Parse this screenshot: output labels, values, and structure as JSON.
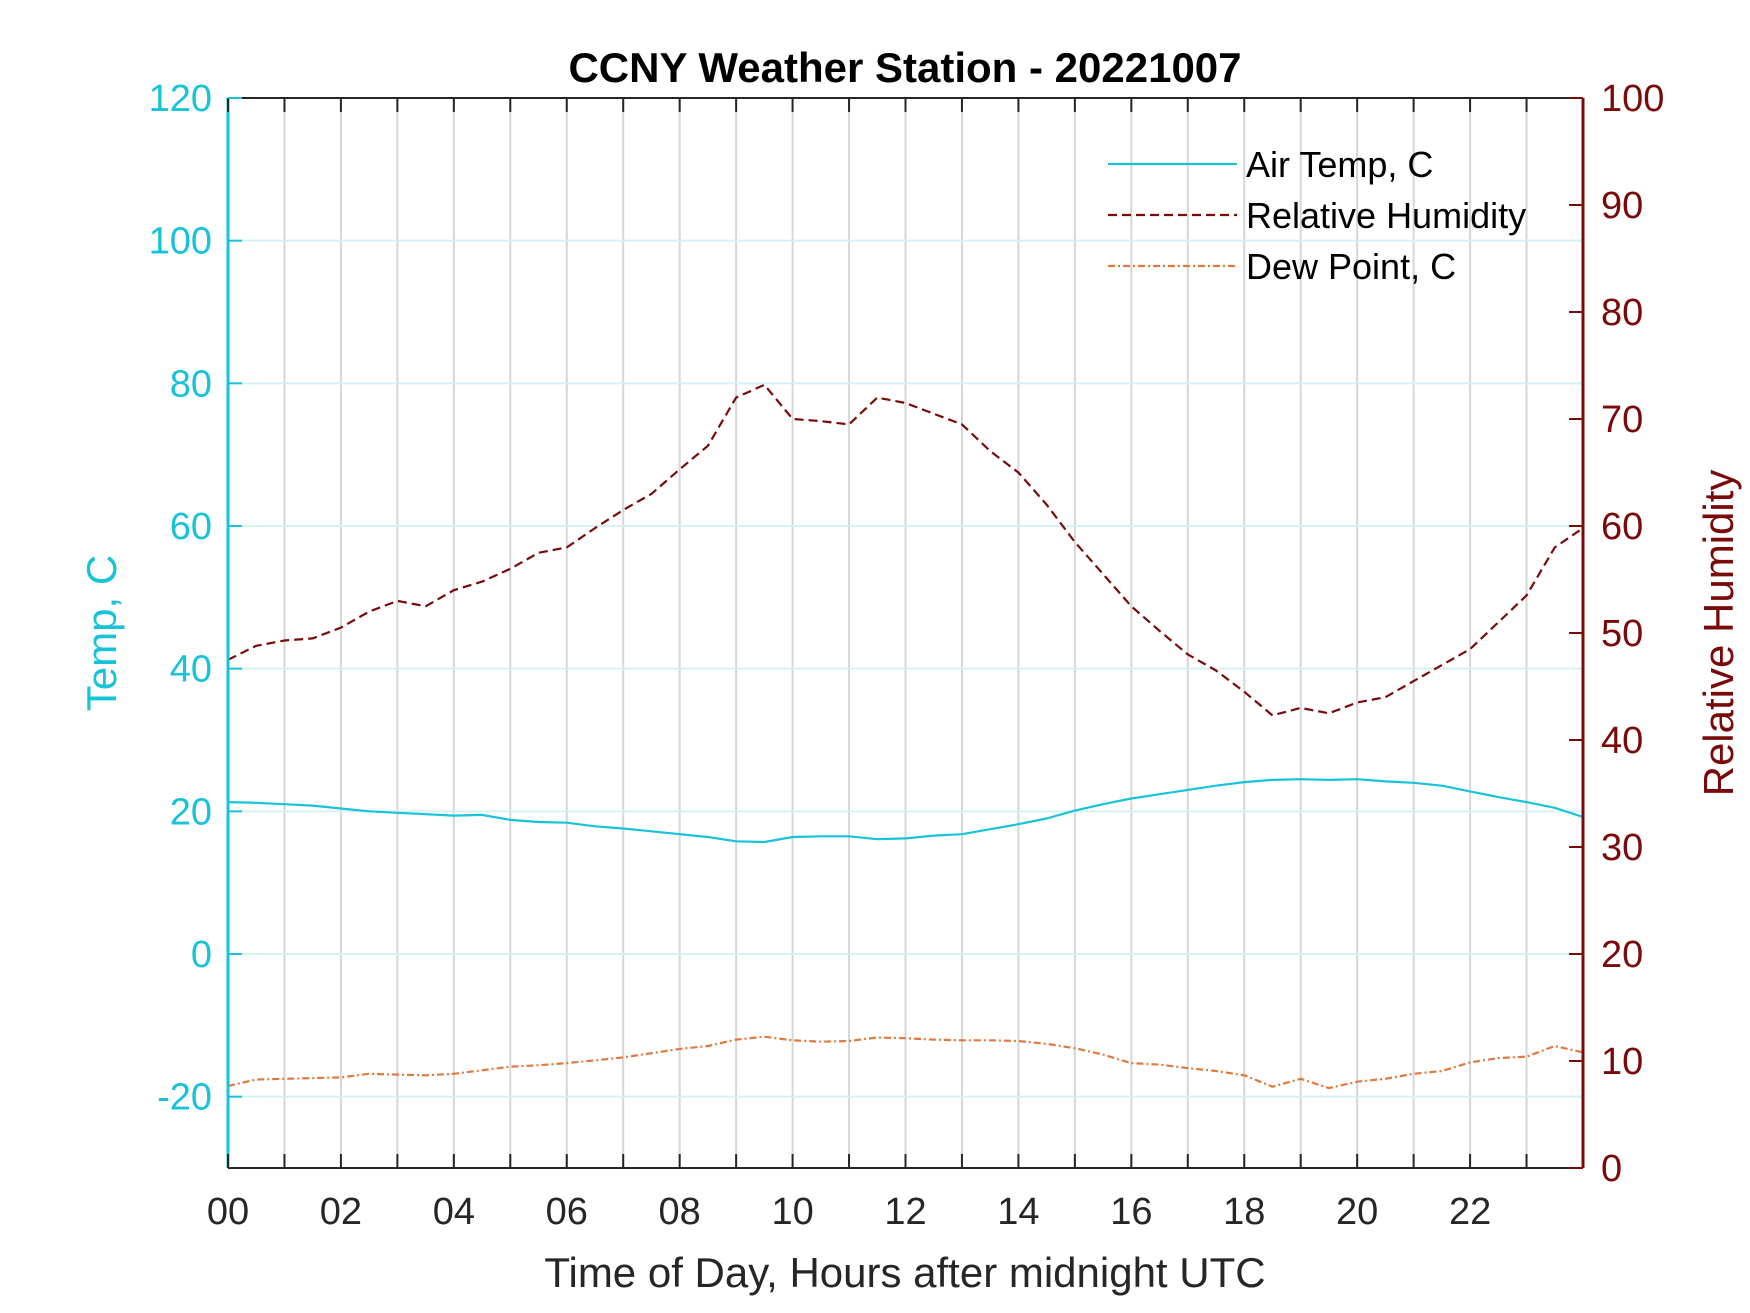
{
  "chart_data": {
    "type": "line",
    "title": "CCNY Weather Station - 20221007",
    "xlabel": "Time of Day, Hours after midnight UTC",
    "ylabel_left": "Temp, C",
    "ylabel_right": "Relative Humidity",
    "xlim": [
      0,
      24
    ],
    "ylim_left": [
      -30,
      120
    ],
    "ylim_right": [
      0,
      100
    ],
    "xticks": [
      0,
      2,
      4,
      6,
      8,
      10,
      12,
      14,
      16,
      18,
      20,
      22
    ],
    "xtick_labels": [
      "00",
      "02",
      "04",
      "06",
      "08",
      "10",
      "12",
      "14",
      "16",
      "18",
      "20",
      "22"
    ],
    "yticks_left": [
      -20,
      0,
      20,
      40,
      60,
      80,
      100,
      120
    ],
    "yticks_right": [
      0,
      10,
      20,
      30,
      40,
      50,
      60,
      70,
      80,
      90,
      100
    ],
    "grid": true,
    "legend_position": "top-right",
    "colors": {
      "left_axis": "#17c3d8",
      "right_axis": "#7a0a0a",
      "grid_vertical": "#d6d6d6",
      "grid_horizontal": "#d6f0f5"
    },
    "series": [
      {
        "name": "Air Temp, C",
        "axis": "left",
        "color": "#17c3d8",
        "style": "solid",
        "x": [
          0,
          0.5,
          1,
          1.5,
          2,
          2.5,
          3,
          3.5,
          4,
          4.5,
          5,
          5.5,
          6,
          6.5,
          7,
          7.5,
          8,
          8.5,
          9,
          9.5,
          10,
          10.5,
          11,
          11.5,
          12,
          12.5,
          13,
          13.5,
          14,
          14.5,
          15,
          15.5,
          16,
          16.5,
          17,
          17.5,
          18,
          18.5,
          19,
          19.5,
          20,
          20.5,
          21,
          21.5,
          22,
          22.5,
          23,
          23.5,
          24
        ],
        "y": [
          21.3,
          21.2,
          21.0,
          20.8,
          20.4,
          20.0,
          19.8,
          19.6,
          19.4,
          19.5,
          18.8,
          18.5,
          18.4,
          17.9,
          17.6,
          17.2,
          16.8,
          16.4,
          15.8,
          15.7,
          16.4,
          16.5,
          16.5,
          16.1,
          16.2,
          16.6,
          16.8,
          17.5,
          18.2,
          19.0,
          20.1,
          21.0,
          21.8,
          22.4,
          23.0,
          23.6,
          24.1,
          24.4,
          24.5,
          24.4,
          24.5,
          24.2,
          24.0,
          23.6,
          22.8,
          22.0,
          21.3,
          20.5,
          19.2
        ]
      },
      {
        "name": "Relative Humidity",
        "axis": "right",
        "color": "#7a0a0a",
        "style": "dashed",
        "x": [
          0,
          0.5,
          1,
          1.5,
          2,
          2.5,
          3,
          3.5,
          4,
          4.5,
          5,
          5.5,
          6,
          6.5,
          7,
          7.5,
          8,
          8.5,
          9,
          9.5,
          10,
          10.5,
          11,
          11.5,
          12,
          12.5,
          13,
          13.5,
          14,
          14.5,
          15,
          15.5,
          16,
          16.5,
          17,
          17.5,
          18,
          18.5,
          19,
          19.5,
          20,
          20.5,
          21,
          21.5,
          22,
          22.5,
          23,
          23.5,
          24
        ],
        "y": [
          47.5,
          48.8,
          49.3,
          49.5,
          50.5,
          52.0,
          53.0,
          52.5,
          54.0,
          54.8,
          56.0,
          57.5,
          58.0,
          59.8,
          61.5,
          63.0,
          65.3,
          67.5,
          72.0,
          73.2,
          70.0,
          69.8,
          69.5,
          72.0,
          71.5,
          70.5,
          69.5,
          67.0,
          65.0,
          62.0,
          58.5,
          55.5,
          52.5,
          50.2,
          48.0,
          46.5,
          44.5,
          42.3,
          43.0,
          42.5,
          43.5,
          44.0,
          45.5,
          47.0,
          48.5,
          51.0,
          53.5,
          58.0,
          59.8
        ]
      },
      {
        "name": "Dew Point, C",
        "axis": "left",
        "color": "#e07a3c",
        "style": "dashdot",
        "x": [
          0,
          0.5,
          1,
          1.5,
          2,
          2.5,
          3,
          3.5,
          4,
          4.5,
          5,
          5.5,
          6,
          6.5,
          7,
          7.5,
          8,
          8.5,
          9,
          9.5,
          10,
          10.5,
          11,
          11.5,
          12,
          12.5,
          13,
          13.5,
          14,
          14.5,
          15,
          15.5,
          16,
          16.5,
          17,
          17.5,
          18,
          18.5,
          19,
          19.5,
          20,
          20.5,
          21,
          21.5,
          22,
          22.5,
          23,
          23.5,
          24
        ],
        "y": [
          -18.5,
          -17.6,
          -17.5,
          -17.4,
          -17.3,
          -16.8,
          -16.9,
          -17.0,
          -16.8,
          -16.3,
          -15.8,
          -15.6,
          -15.3,
          -14.9,
          -14.5,
          -13.9,
          -13.3,
          -12.9,
          -12.0,
          -11.6,
          -12.1,
          -12.3,
          -12.2,
          -11.7,
          -11.8,
          -12.0,
          -12.1,
          -12.1,
          -12.2,
          -12.6,
          -13.2,
          -14.1,
          -15.3,
          -15.5,
          -16.0,
          -16.4,
          -17.0,
          -18.6,
          -17.5,
          -18.8,
          -17.9,
          -17.5,
          -16.8,
          -16.4,
          -15.2,
          -14.6,
          -14.4,
          -12.9,
          -13.8
        ]
      }
    ]
  }
}
